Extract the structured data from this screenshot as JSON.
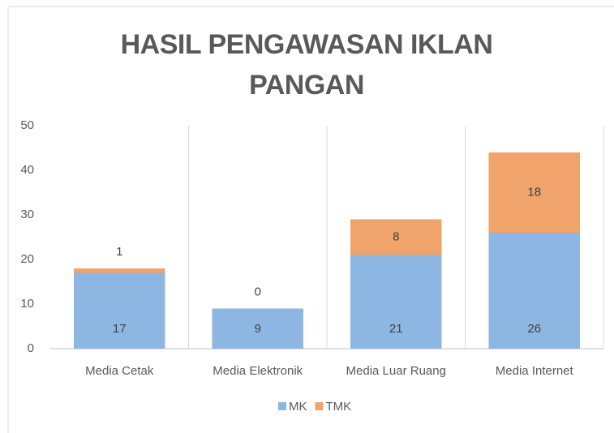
{
  "chart_data": {
    "type": "stacked_bar",
    "title": "HASIL PENGAWASAN IKLAN PANGAN",
    "categories": [
      "Media Cetak",
      "Media Elektronik",
      "Media Luar Ruang",
      "Media Internet"
    ],
    "series": [
      {
        "name": "MK",
        "color": "#8eb6e2",
        "values": [
          17,
          9,
          21,
          26
        ]
      },
      {
        "name": "TMK",
        "color": "#f0a46b",
        "values": [
          1,
          0,
          8,
          18
        ]
      }
    ],
    "ylim": [
      0,
      50
    ],
    "yticks": [
      0,
      10,
      20,
      30,
      40,
      50
    ],
    "legend": "bottom"
  }
}
